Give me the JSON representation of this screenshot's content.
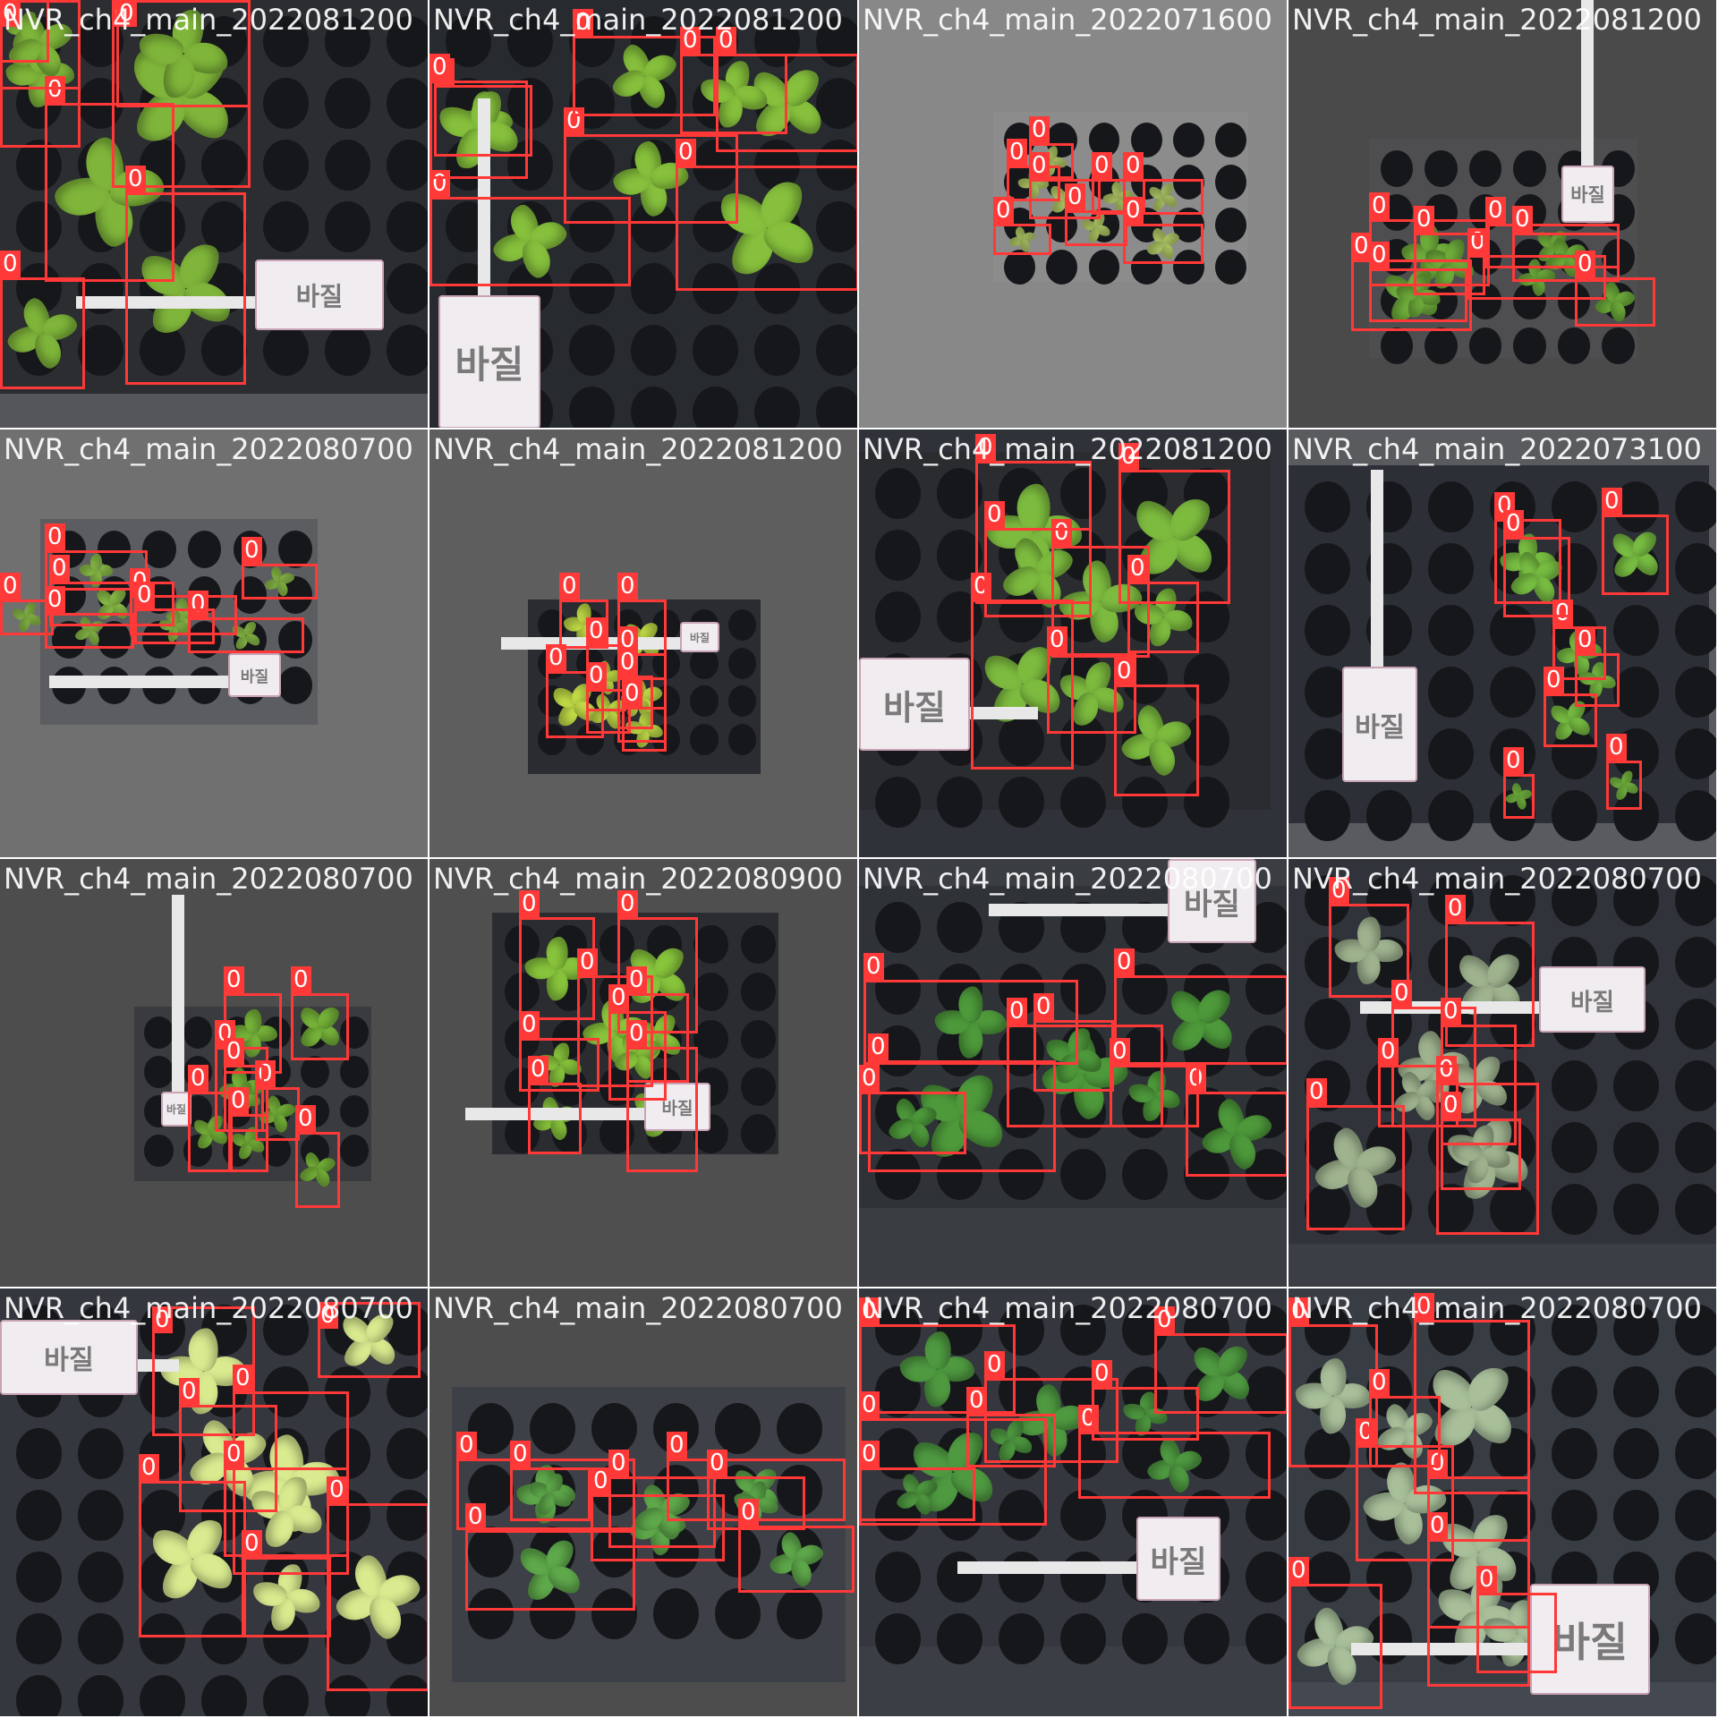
{
  "mosaic": {
    "grid": "4x4",
    "box_color": "#ff3838",
    "class_label": "0",
    "tiles": [
      {
        "label": "NVR_ch4_main_2022081200",
        "bg": "#55565a",
        "tray": "#2b2d31",
        "plant_color": "#7fb53a",
        "tag_text": "바질",
        "boxes": 8
      },
      {
        "label": "NVR_ch4_main_2022081200",
        "bg": "#3e4045",
        "tray": "#272a2e",
        "plant_color": "#86c03c",
        "tag_text": "바질",
        "boxes": 8
      },
      {
        "label": "NVR_ch4_main_2022071600",
        "bg": "#888888",
        "tray": "#8c8c8c",
        "plant_color": "#b7d06a",
        "tag_text": "",
        "boxes": 8
      },
      {
        "label": "NVR_ch4_main_2022081200",
        "bg": "#4a4a4a",
        "tray": "#4e4e50",
        "plant_color": "#6fae3b",
        "tag_text": "바질",
        "boxes": 8
      },
      {
        "label": "NVR_ch4_main_2022080700",
        "bg": "#707070",
        "tray": "#5c5d60",
        "plant_color": "#8ec24a",
        "tag_text": "바질",
        "boxes": 8
      },
      {
        "label": "NVR_ch4_main_2022081200",
        "bg": "#5e5e5e",
        "tray": "#2b2c31",
        "plant_color": "#c3de47",
        "tag_text": "바질",
        "boxes": 8
      },
      {
        "label": "NVR_ch4_main_2022081200",
        "bg": "#2f3238",
        "tray": "#2a2c30",
        "plant_color": "#7dbb3f",
        "tag_text": "바질",
        "boxes": 8
      },
      {
        "label": "NVR_ch4_main_2022073100",
        "bg": "#595b5f",
        "tray": "#2c2f36",
        "plant_color": "#79bf43",
        "tag_text": "바질",
        "boxes": 8
      },
      {
        "label": "NVR_ch4_main_2022080700",
        "bg": "#4d4d4d",
        "tray": "#3a3b3e",
        "plant_color": "#78b63a",
        "tag_text": "바질",
        "boxes": 8
      },
      {
        "label": "NVR_ch4_main_2022080900",
        "bg": "#4f4f4f",
        "tray": "#2a2c30",
        "plant_color": "#88c53c",
        "tag_text": "바질",
        "boxes": 8
      },
      {
        "label": "NVR_ch4_main_2022080700",
        "bg": "#3a3d42",
        "tray": "#2f3237",
        "plant_color": "#4e9a3b",
        "tag_text": "바질",
        "boxes": 8
      },
      {
        "label": "NVR_ch4_main_2022080700",
        "bg": "#3b3e44",
        "tray": "#30333a",
        "plant_color": "#9fb38f",
        "tag_text": "바질",
        "boxes": 8
      },
      {
        "label": "NVR_ch4_main_2022080700",
        "bg": "#3c3f45",
        "tray": "#34373d",
        "plant_color": "#d9ea8f",
        "tag_text": "바질",
        "boxes": 8
      },
      {
        "label": "NVR_ch4_main_2022080700",
        "bg": "#4d4d4d",
        "tray": "#3d4046",
        "plant_color": "#5fa94b",
        "tag_text": "",
        "boxes": 8
      },
      {
        "label": "NVR_ch4_main_2022080700",
        "bg": "#3b3f45",
        "tray": "#34383e",
        "plant_color": "#4f9a41",
        "tag_text": "바질",
        "boxes": 8
      },
      {
        "label": "NVR_ch4_main_2022080700",
        "bg": "#444850",
        "tray": "#383c43",
        "plant_color": "#a8bf9a",
        "tag_text": "바질",
        "boxes": 8
      }
    ]
  }
}
